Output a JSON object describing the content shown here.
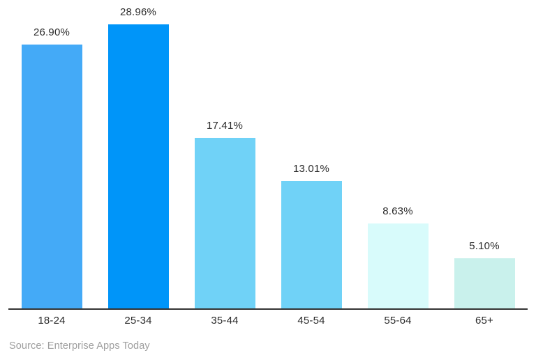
{
  "chart_data": {
    "type": "bar",
    "title": "",
    "xlabel": "",
    "ylabel": "",
    "categories": [
      "18-24",
      "25-34",
      "35-44",
      "45-54",
      "55-64",
      "65+"
    ],
    "values": [
      26.9,
      28.96,
      17.41,
      13.01,
      8.63,
      5.1
    ],
    "value_labels": [
      "26.90%",
      "28.96%",
      "17.41%",
      "13.01%",
      "8.63%",
      "5.10%"
    ],
    "bar_colors": [
      "#44AAF7",
      "#0095F9",
      "#70D2F7",
      "#70D2F7",
      "#D8FBFB",
      "#C9F1EC"
    ],
    "ylim": [
      0,
      31.4
    ],
    "grid": false,
    "legend": false,
    "axis_line_color": "#333333",
    "label_color": "#2b2b2b",
    "background": "#ffffff"
  },
  "footer": {
    "source": "Source: Enterprise Apps Today",
    "color": "#9e9e9e"
  }
}
